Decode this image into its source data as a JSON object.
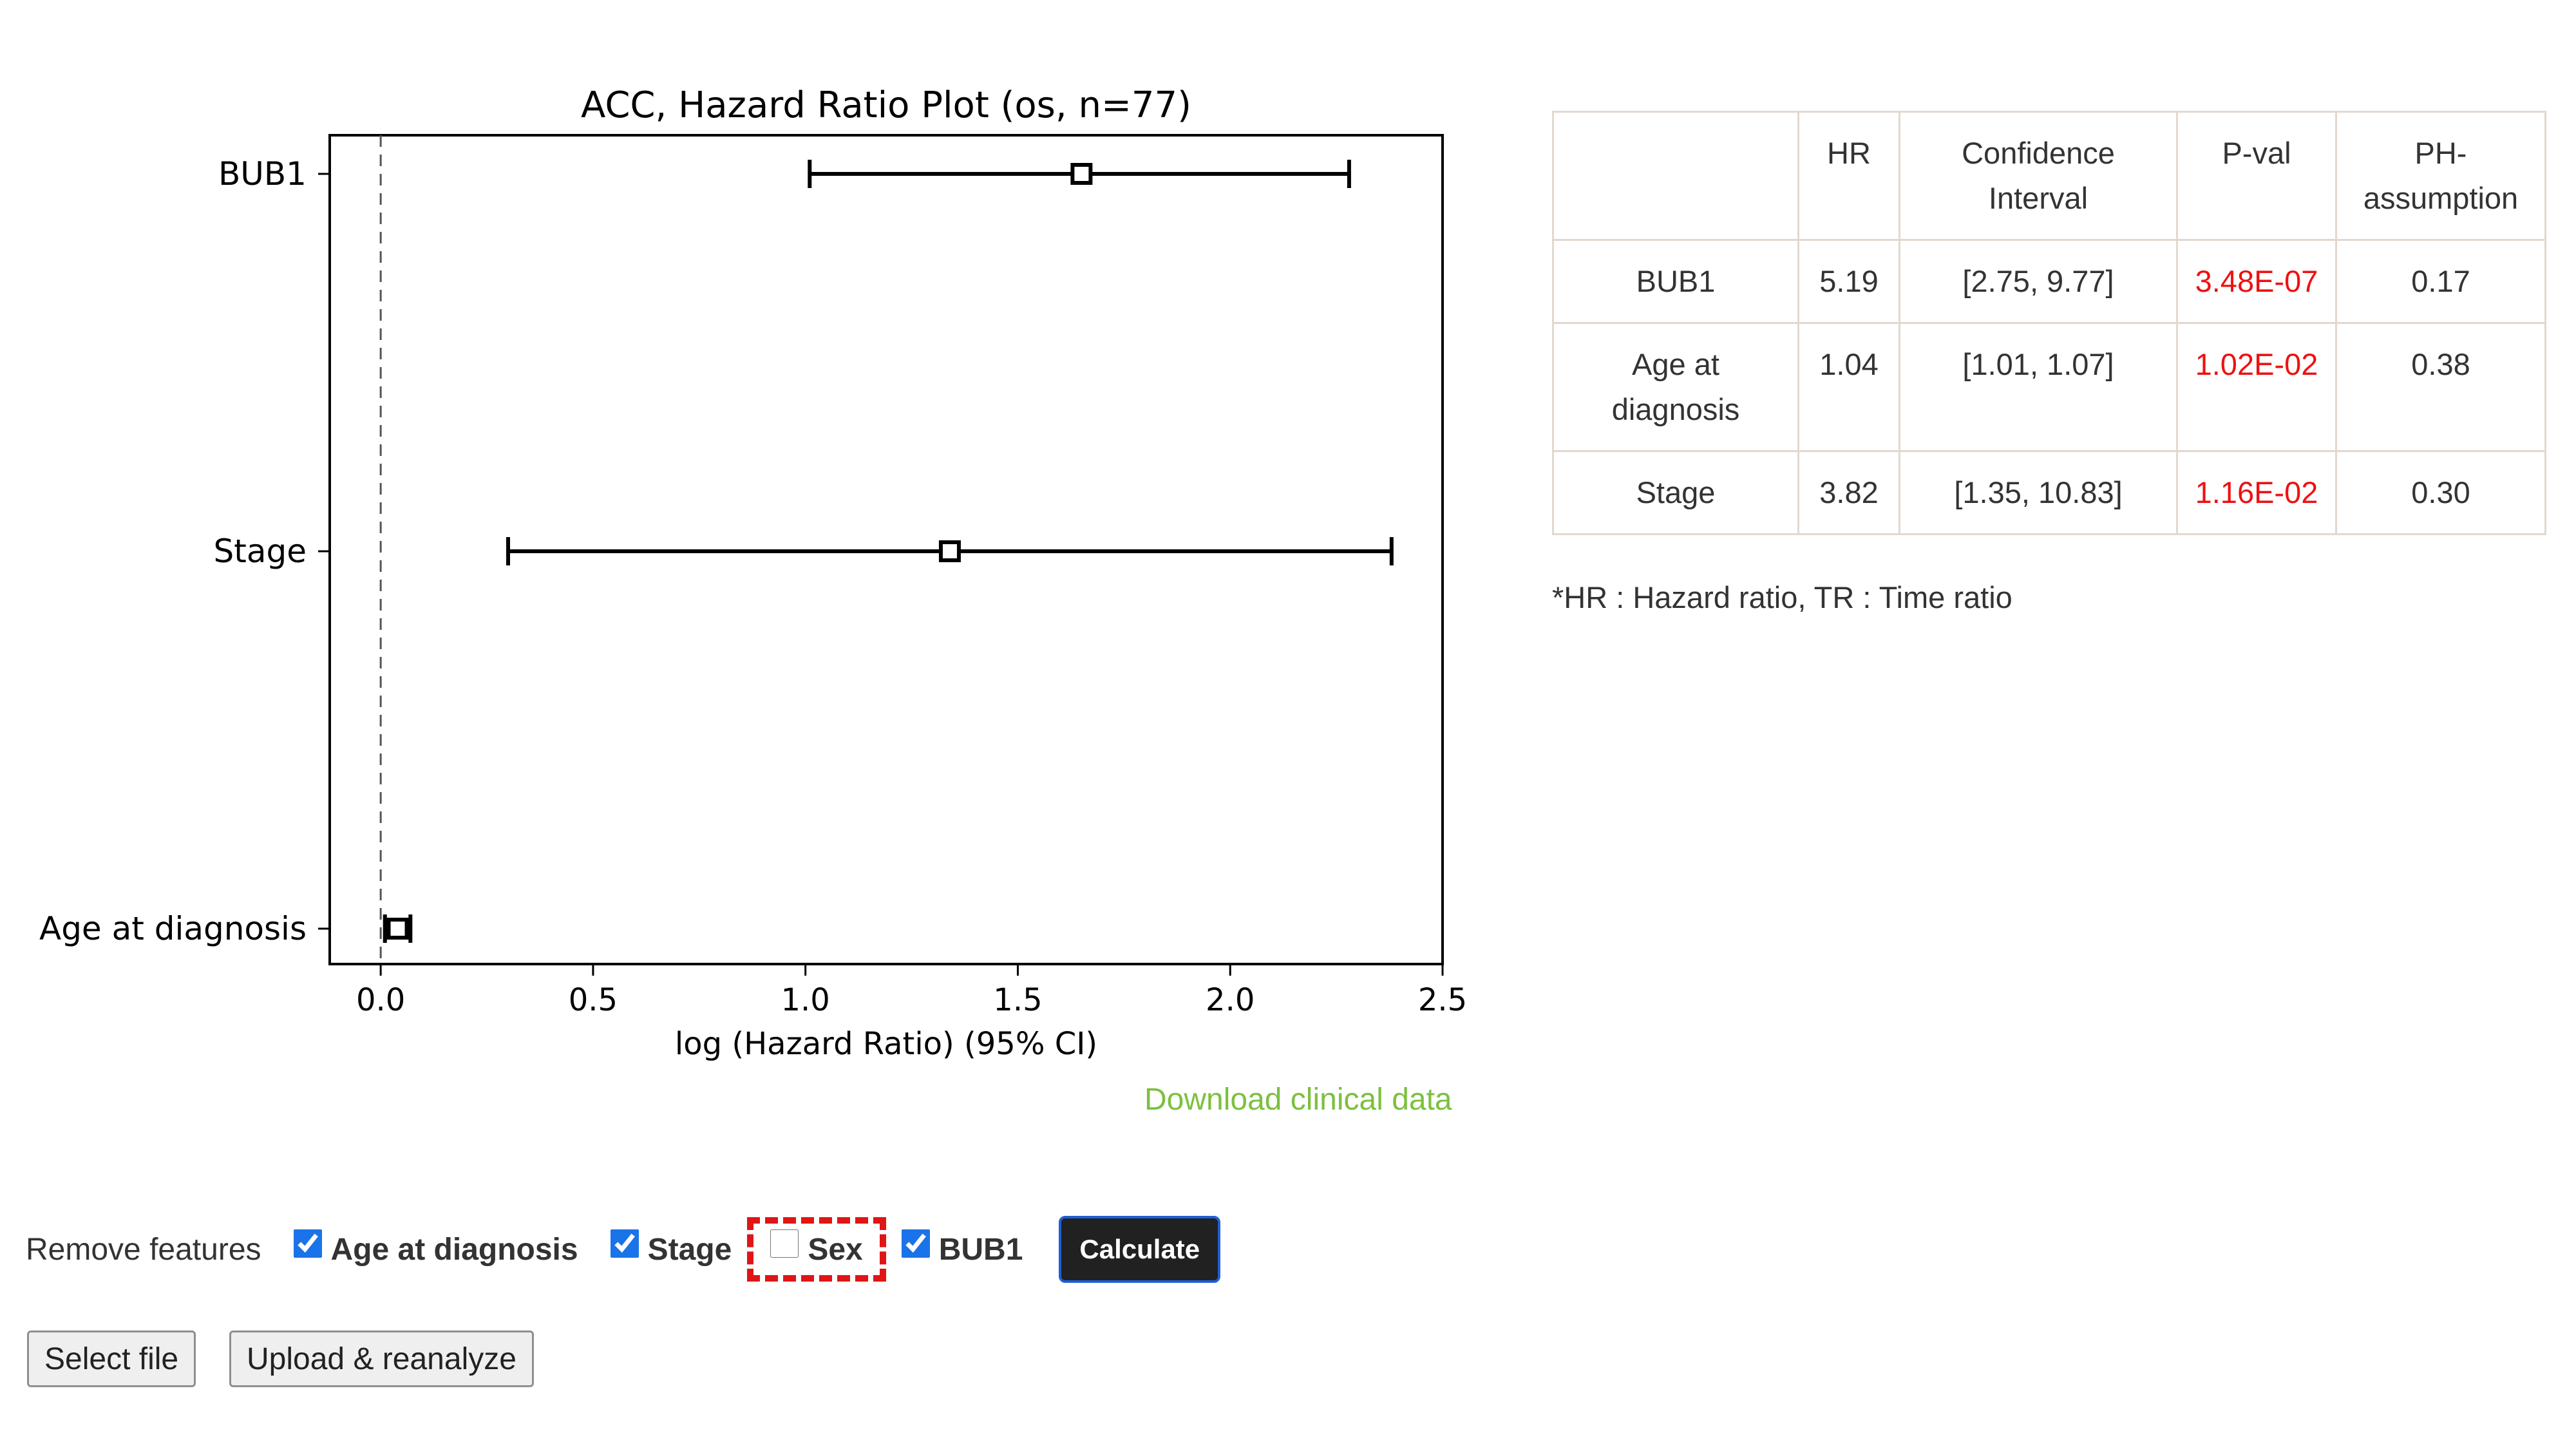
{
  "chart_data": {
    "type": "scatter",
    "title": "ACC, Hazard Ratio Plot (os, n=77)",
    "xlabel": "log (Hazard Ratio) (95% CI)",
    "ylabel": "",
    "xlim": [
      -0.12,
      2.5
    ],
    "xticks": [
      "0.0",
      "0.5",
      "1.0",
      "1.5",
      "2.0",
      "2.5"
    ],
    "reference_line_x": 0,
    "categories": [
      "BUB1",
      "Stage",
      "Age at diagnosis"
    ],
    "points": [
      {
        "label": "BUB1",
        "x": 1.65,
        "lower": 1.01,
        "upper": 2.28
      },
      {
        "label": "Stage",
        "x": 1.34,
        "lower": 0.3,
        "upper": 2.38
      },
      {
        "label": "Age at diagnosis",
        "x": 0.04,
        "lower": 0.01,
        "upper": 0.07
      }
    ],
    "grid": false,
    "legend": "none"
  },
  "download_link": "Download clinical data",
  "table": {
    "headers": [
      "",
      "HR",
      "Confidence Interval",
      "P-val",
      "PH-assumption"
    ],
    "rows": [
      [
        "BUB1",
        "5.19",
        "[2.75, 9.77]",
        "3.48E-07",
        "0.17"
      ],
      [
        "Age at diagnosis",
        "1.04",
        "[1.01, 1.07]",
        "1.02E-02",
        "0.38"
      ],
      [
        "Stage",
        "3.82",
        "[1.35, 10.83]",
        "1.16E-02",
        "0.30"
      ]
    ]
  },
  "footnote": "*HR : Hazard ratio, TR : Time ratio",
  "features": {
    "label": "Remove features",
    "items": [
      {
        "label": "Age at diagnosis",
        "checked": true
      },
      {
        "label": "Stage",
        "checked": true
      },
      {
        "label": "Sex",
        "checked": false
      },
      {
        "label": "BUB1",
        "checked": true
      }
    ]
  },
  "calculate_label": "Calculate",
  "select_file_label": "Select file",
  "upload_label": "Upload & reanalyze",
  "colors": {
    "link": "#7cc03f",
    "pval": "#ee1111",
    "highlight": "#e01515",
    "button": "#212121"
  }
}
